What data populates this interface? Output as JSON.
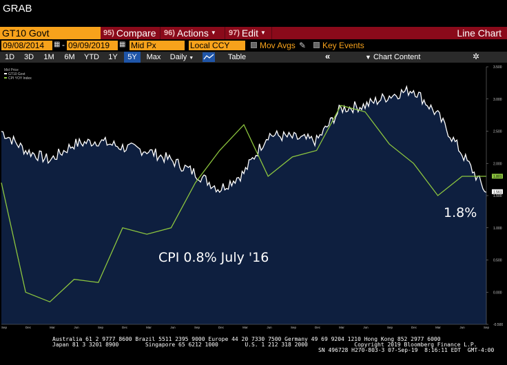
{
  "app": {
    "title": "GRAB"
  },
  "command_bar": {
    "security": "GT10 Govt",
    "compare": {
      "num": "95)",
      "label": "Compare"
    },
    "actions": {
      "num": "96)",
      "label": "Actions"
    },
    "edit": {
      "num": "97)",
      "label": "Edit"
    },
    "view": "Line Chart"
  },
  "params": {
    "start_date": "09/08/2014",
    "end_date": "09/09/2019",
    "field": "Mid Px",
    "currency": "Local CCY",
    "mov_avgs": "Mov Avgs",
    "key_events": "Key Events"
  },
  "range_bar": {
    "ranges": [
      "1D",
      "3D",
      "1M",
      "6M",
      "YTD",
      "1Y",
      "5Y",
      "Max"
    ],
    "active": "5Y",
    "frequency": "Daily",
    "table": "Table",
    "chart_content": "Chart Content"
  },
  "chart_data": {
    "type": "line",
    "legend": {
      "header": "Mid Price",
      "entries": [
        "GT10 Govt",
        "CPI YOY Index"
      ]
    },
    "right_axis": {
      "ticks": [
        "3.500",
        "3.000",
        "2.500",
        "2.000",
        "1.500",
        "1.000",
        "0.500",
        "0.000",
        "-0.500"
      ],
      "ylim": [
        -0.5,
        3.5
      ]
    },
    "last_values": {
      "gt10": "1.561",
      "cpi": "1.801"
    },
    "x_month_labels": [
      "Sep",
      "Dec",
      "Mar",
      "Jun",
      "Sep",
      "Dec",
      "Mar",
      "Jun",
      "Sep",
      "Dec",
      "Mar",
      "Jun",
      "Sep",
      "Dec",
      "Mar",
      "Jun",
      "Sep",
      "Dec",
      "Mar",
      "Jun",
      "Sep"
    ],
    "x_year_labels": [
      "2014",
      "2015",
      "2016",
      "2017",
      "2018",
      "2019"
    ],
    "annotations": {
      "cpi_low": "CPI 0.8% July '16",
      "cpi_last": "1.8%"
    },
    "series": [
      {
        "name": "GT10 Govt",
        "color": "#ffffff",
        "fill": "#0e1f3f",
        "x": [
          0,
          1,
          2,
          3,
          4,
          5,
          6,
          7,
          8,
          9,
          10,
          11,
          12,
          13,
          14,
          15,
          16,
          17,
          18,
          19,
          20
        ],
        "values": [
          2.5,
          2.2,
          2.05,
          2.3,
          2.35,
          2.25,
          2.2,
          2.05,
          1.85,
          1.6,
          1.85,
          2.45,
          2.4,
          2.35,
          2.85,
          2.9,
          3.05,
          3.15,
          2.75,
          2.15,
          1.55
        ]
      },
      {
        "name": "CPI YOY Index",
        "color": "#8dc63f",
        "x": [
          0,
          1,
          2,
          3,
          4,
          5,
          6,
          7,
          8,
          9,
          10,
          11,
          12,
          13,
          14,
          15,
          16,
          17,
          18,
          19,
          20
        ],
        "values": [
          1.7,
          0.0,
          -0.15,
          0.2,
          0.15,
          1.0,
          0.9,
          1.0,
          1.7,
          2.2,
          2.6,
          1.8,
          2.1,
          2.2,
          2.9,
          2.8,
          2.3,
          2.0,
          1.5,
          1.8,
          1.8
        ]
      }
    ]
  },
  "footer": {
    "line1": "Australia 61 2 9777 8600 Brazil 5511 2395 9000 Europe 44 20 7330 7500 Germany 49 69 9204 1210 Hong Kong 852 2977 6000",
    "line2": "Japan 81 3 3201 8900        Singapore 65 6212 1000        U.S. 1 212 318 2000              Copyright 2019 Bloomberg Finance L.P.",
    "line3": "SN 496728 H270-803-3 07-Sep-19  8:16:11 EDT  GMT-4:00"
  }
}
